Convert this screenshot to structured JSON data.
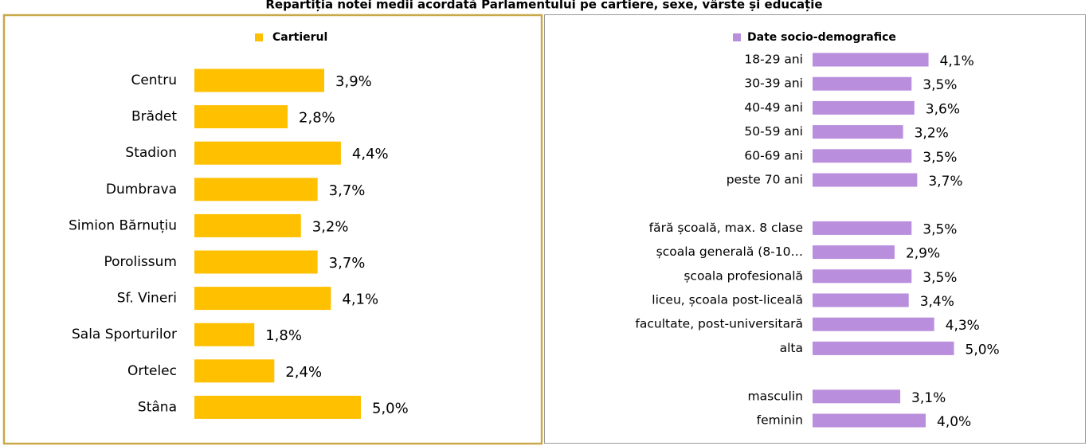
{
  "title": "Repartiția notei medii acordată Parlamentului pe cartiere, sexe, vârste și educație",
  "chart_data": [
    {
      "type": "bar",
      "legend": "Cartierul",
      "color": "#FFC000",
      "categories": [
        "Centru",
        "Brădet",
        "Stadion",
        "Dumbrava",
        "Simion Bărnuțiu",
        "Porolissum",
        "Sf. Vineri",
        "Sala Sporturilor",
        "Ortelec",
        "Stâna"
      ],
      "values": [
        3.9,
        2.8,
        4.4,
        3.7,
        3.2,
        3.7,
        4.1,
        1.8,
        2.4,
        5.0
      ],
      "value_labels": [
        "3,9%",
        "2,8%",
        "4,4%",
        "3,7%",
        "3,2%",
        "3,7%",
        "4,1%",
        "1,8%",
        "2,4%",
        "5,0%"
      ]
    },
    {
      "type": "bar",
      "legend": "Date socio-demografice",
      "color": "#B98EDC",
      "categories": [
        "18-29 ani",
        "30-39 ani",
        "40-49 ani",
        "50-59 ani",
        "60-69 ani",
        "peste 70 ani",
        null,
        "fără școală, max. 8 clase",
        "școala generală (8-10…",
        "școala profesională",
        "liceu, școala post-liceală",
        "facultate, post-universitară",
        "alta",
        null,
        "masculin",
        "feminin"
      ],
      "values": [
        4.1,
        3.5,
        3.6,
        3.2,
        3.5,
        3.7,
        null,
        3.5,
        2.9,
        3.5,
        3.4,
        4.3,
        5.0,
        null,
        3.1,
        4.0
      ],
      "value_labels": [
        "4,1%",
        "3,5%",
        "3,6%",
        "3,2%",
        "3,5%",
        "3,7%",
        null,
        "3,5%",
        "2,9%",
        "3,5%",
        "3,4%",
        "4,3%",
        "5,0%",
        null,
        "3,1%",
        "4,0%"
      ]
    }
  ]
}
